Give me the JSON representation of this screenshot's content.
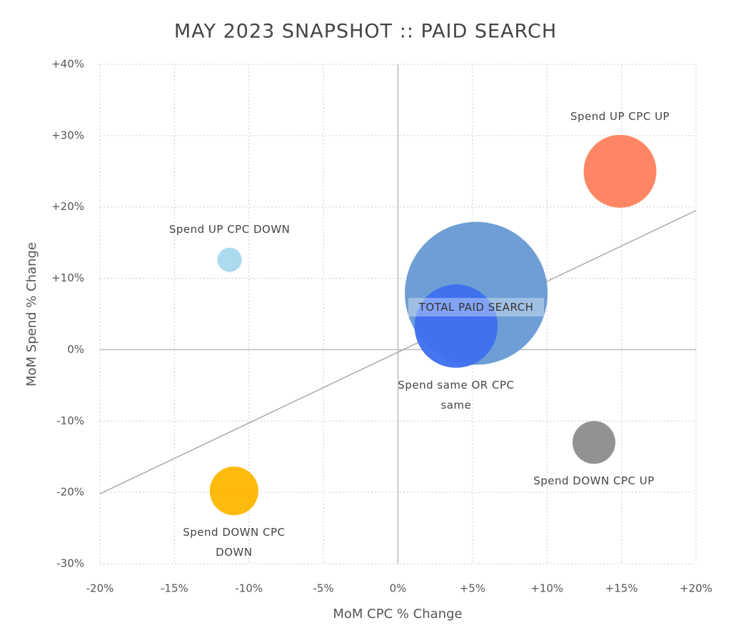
{
  "chart_data": {
    "type": "bubble",
    "title": "MAY 2023 SNAPSHOT :: PAID SEARCH",
    "x_label": "MoM CPC % Change",
    "y_label": "MoM Spend % Change",
    "xlim": [
      -20,
      20
    ],
    "ylim": [
      -30,
      40
    ],
    "xticks": [
      {
        "value": -20,
        "label": "-20%"
      },
      {
        "value": -15,
        "label": "-15%"
      },
      {
        "value": -10,
        "label": "-10%"
      },
      {
        "value": -5,
        "label": "-5%"
      },
      {
        "value": 0,
        "label": "0%"
      },
      {
        "value": 5,
        "label": "+5%"
      },
      {
        "value": 10,
        "label": "+10%"
      },
      {
        "value": 15,
        "label": "+15%"
      },
      {
        "value": 20,
        "label": "+20%"
      }
    ],
    "yticks": [
      {
        "value": -30,
        "label": "-30%"
      },
      {
        "value": -20,
        "label": "-20%"
      },
      {
        "value": -10,
        "label": "-10%"
      },
      {
        "value": 0,
        "label": "0%"
      },
      {
        "value": 10,
        "label": "+10%"
      },
      {
        "value": 20,
        "label": "+20%"
      },
      {
        "value": 30,
        "label": "+30%"
      },
      {
        "value": 40,
        "label": "+40%"
      }
    ],
    "grid": true,
    "series": [
      {
        "name": "Spend UP CPC UP",
        "color": "#ff7f5c",
        "x": 14.9,
        "y": 25.0,
        "size": 26
      },
      {
        "name": "Spend UP CPC DOWN",
        "color": "#a8d8ee",
        "x": -11.3,
        "y": 12.6,
        "size": 2.9
      },
      {
        "name": "TOTAL PAID SEARCH",
        "color": "#6699d3",
        "x": 5.25,
        "y": 7.9,
        "size": 100
      },
      {
        "name": "Spend same OR CPC same",
        "color": "#3d6ff0",
        "x": 3.9,
        "y": 3.3,
        "size": 34
      },
      {
        "name": "Spend DOWN CPC UP",
        "color": "#8c8c8c",
        "x": 13.15,
        "y": -13.0,
        "size": 9
      },
      {
        "name": "Spend DOWN CPC DOWN",
        "color": "#ffb700",
        "x": -11.0,
        "y": -19.8,
        "size": 11.6
      }
    ],
    "trendline": {
      "x": [
        -20,
        20
      ],
      "y": [
        -20.2,
        19.5
      ],
      "color": "#aaaaaa"
    }
  }
}
